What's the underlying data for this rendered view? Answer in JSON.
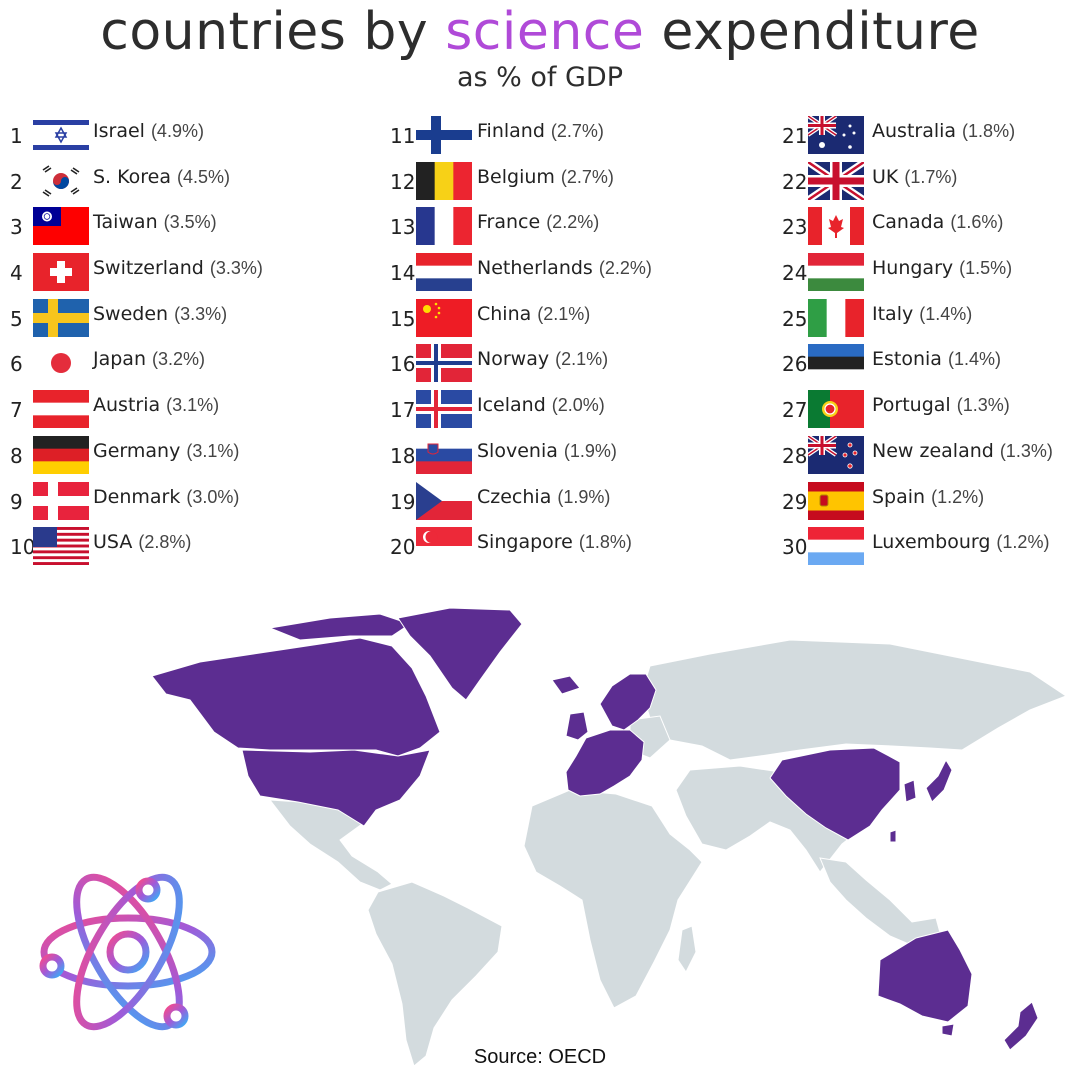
{
  "header": {
    "title_pre": "countries by",
    "title_highlight": "science",
    "title_post": "expenditure",
    "subtitle": "as % of GDP",
    "highlight_color": "#b04ad8"
  },
  "chart_data": {
    "type": "table",
    "title": "countries by science expenditure",
    "subtitle": "as % of GDP",
    "unit": "% of GDP",
    "rows": [
      {
        "rank": "1",
        "country": "Israel",
        "value": 4.9,
        "label": "(4.9%)",
        "flag": "israel"
      },
      {
        "rank": "2",
        "country": "S. Korea",
        "value": 4.5,
        "label": "(4.5%)",
        "flag": "south-korea"
      },
      {
        "rank": "3",
        "country": "Taiwan",
        "value": 3.5,
        "label": "(3.5%)",
        "flag": "taiwan"
      },
      {
        "rank": "4",
        "country": "Switzerland",
        "value": 3.3,
        "label": "(3.3%)",
        "flag": "switzerland"
      },
      {
        "rank": "5",
        "country": "Sweden",
        "value": 3.3,
        "label": "(3.3%)",
        "flag": "sweden"
      },
      {
        "rank": "6",
        "country": "Japan",
        "value": 3.2,
        "label": "(3.2%)",
        "flag": "japan"
      },
      {
        "rank": "7",
        "country": "Austria",
        "value": 3.1,
        "label": "(3.1%)",
        "flag": "austria"
      },
      {
        "rank": "8",
        "country": "Germany",
        "value": 3.1,
        "label": "(3.1%)",
        "flag": "germany"
      },
      {
        "rank": "9",
        "country": "Denmark",
        "value": 3.0,
        "label": "(3.0%)",
        "flag": "denmark"
      },
      {
        "rank": "10",
        "country": "USA",
        "value": 2.8,
        "label": "(2.8%)",
        "flag": "usa"
      },
      {
        "rank": "11",
        "country": "Finland",
        "value": 2.7,
        "label": "(2.7%)",
        "flag": "finland"
      },
      {
        "rank": "12",
        "country": "Belgium",
        "value": 2.7,
        "label": "(2.7%)",
        "flag": "belgium"
      },
      {
        "rank": "13",
        "country": "France",
        "value": 2.2,
        "label": "(2.2%)",
        "flag": "france"
      },
      {
        "rank": "14",
        "country": "Netherlands",
        "value": 2.2,
        "label": "(2.2%)",
        "flag": "netherlands"
      },
      {
        "rank": "15",
        "country": "China",
        "value": 2.1,
        "label": "(2.1%)",
        "flag": "china"
      },
      {
        "rank": "16",
        "country": "Norway",
        "value": 2.1,
        "label": "(2.1%)",
        "flag": "norway"
      },
      {
        "rank": "17",
        "country": "Iceland",
        "value": 2.0,
        "label": "(2.0%)",
        "flag": "iceland"
      },
      {
        "rank": "18",
        "country": "Slovenia",
        "value": 1.9,
        "label": "(1.9%)",
        "flag": "slovenia"
      },
      {
        "rank": "19",
        "country": "Czechia",
        "value": 1.9,
        "label": "(1.9%)",
        "flag": "czechia"
      },
      {
        "rank": "20",
        "country": "Singapore",
        "value": 1.8,
        "label": "(1.8%)",
        "flag": "singapore"
      },
      {
        "rank": "21",
        "country": "Australia",
        "value": 1.8,
        "label": "(1.8%)",
        "flag": "australia"
      },
      {
        "rank": "22",
        "country": "UK",
        "value": 1.7,
        "label": "(1.7%)",
        "flag": "uk"
      },
      {
        "rank": "23",
        "country": "Canada",
        "value": 1.6,
        "label": "(1.6%)",
        "flag": "canada"
      },
      {
        "rank": "24",
        "country": "Hungary",
        "value": 1.5,
        "label": "(1.5%)",
        "flag": "hungary"
      },
      {
        "rank": "25",
        "country": "Italy",
        "value": 1.4,
        "label": "(1.4%)",
        "flag": "italy"
      },
      {
        "rank": "26",
        "country": "Estonia",
        "value": 1.4,
        "label": "(1.4%)",
        "flag": "estonia"
      },
      {
        "rank": "27",
        "country": "Portugal",
        "value": 1.3,
        "label": "(1.3%)",
        "flag": "portugal"
      },
      {
        "rank": "28",
        "country": "New zealand",
        "value": 1.3,
        "label": "(1.3%)",
        "flag": "new-zealand"
      },
      {
        "rank": "29",
        "country": "Spain",
        "value": 1.2,
        "label": "(1.2%)",
        "flag": "spain"
      },
      {
        "rank": "30",
        "country": "Luxembourg",
        "value": 1.2,
        "label": "(1.2%)",
        "flag": "luxembourg"
      }
    ]
  },
  "map": {
    "highlight_color": "#5c2d91",
    "other_color": "#d3dbde"
  },
  "icons": {
    "atom": "atom-icon"
  },
  "footer": {
    "source": "Source: OECD"
  }
}
